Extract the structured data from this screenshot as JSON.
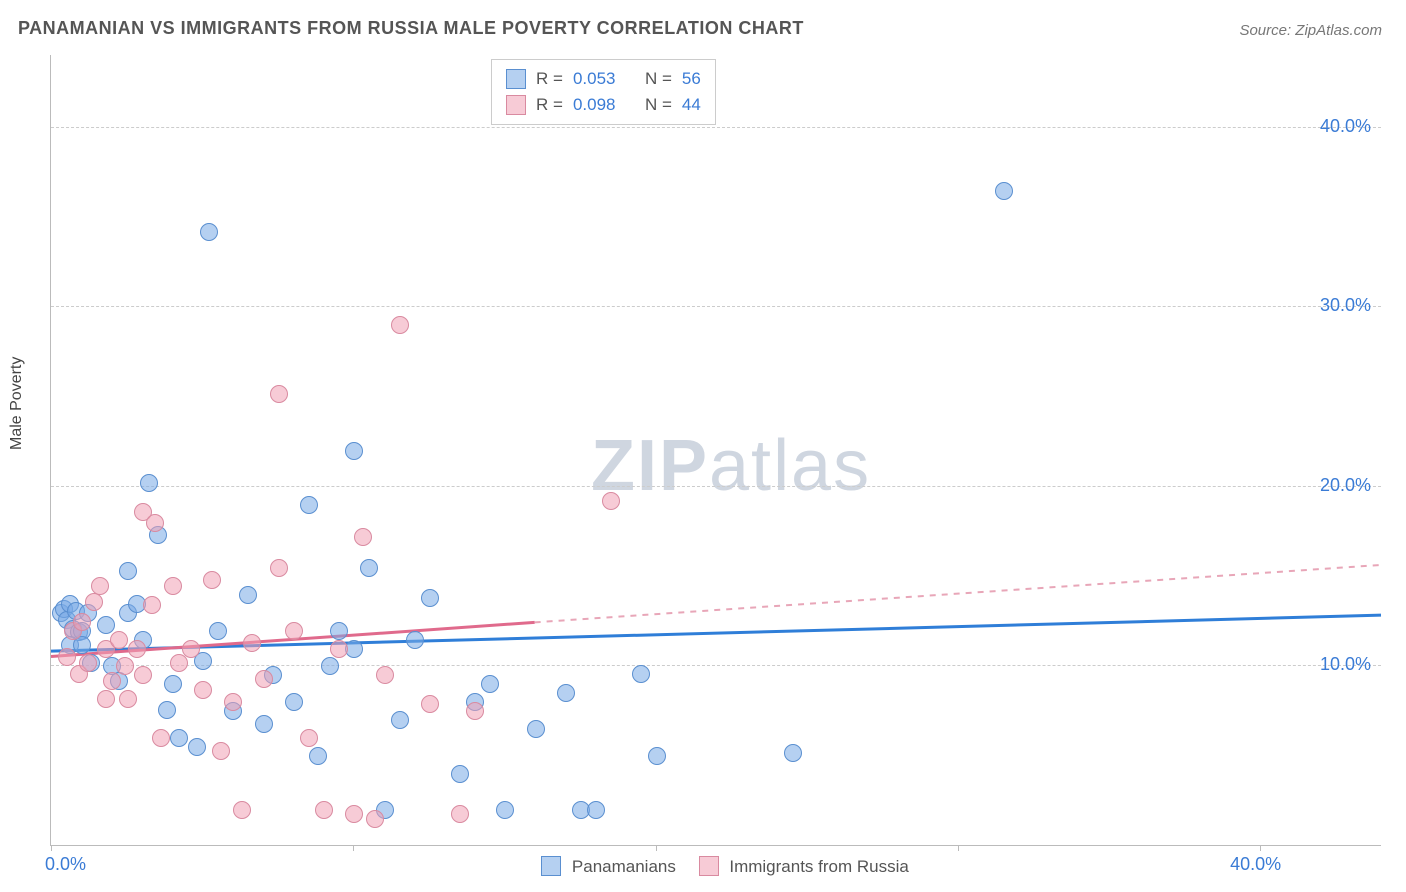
{
  "title": "PANAMANIAN VS IMMIGRANTS FROM RUSSIA MALE POVERTY CORRELATION CHART",
  "source": "Source: ZipAtlas.com",
  "ylabel": "Male Poverty",
  "watermark": {
    "z": "ZIP",
    "rest": "atlas"
  },
  "chart": {
    "type": "scatter",
    "background_color": "#ffffff",
    "grid_color": "#cccccc",
    "axis_color": "#bbbbbb",
    "tick_label_color": "#3a7bd5",
    "tick_fontsize": 18,
    "title_fontsize": 18,
    "marker_radius": 8,
    "xlim": [
      0,
      44
    ],
    "ylim": [
      0,
      44
    ],
    "yticks": [
      10,
      20,
      30,
      40
    ],
    "ytick_labels": [
      "10.0%",
      "20.0%",
      "30.0%",
      "40.0%"
    ],
    "xticks": [
      0,
      10,
      20,
      30,
      40
    ],
    "xtick_labels": [
      "0.0%",
      "",
      "",
      "",
      "40.0%"
    ],
    "series": [
      {
        "name": "Panamanians",
        "marker_fill": "rgba(120,170,230,.55)",
        "marker_stroke": "#5a8fd0",
        "R": "0.053",
        "N": "56",
        "trend": {
          "color": "#2f7ed8",
          "width": 3,
          "dash": "none",
          "x1": 0,
          "y1": 10.8,
          "x2": 44,
          "y2": 12.8
        },
        "points": [
          [
            0.3,
            13.0
          ],
          [
            0.4,
            13.2
          ],
          [
            0.5,
            12.6
          ],
          [
            0.6,
            13.5
          ],
          [
            0.7,
            12.1
          ],
          [
            0.8,
            13.1
          ],
          [
            0.9,
            11.9
          ],
          [
            1.0,
            12.0
          ],
          [
            1.2,
            13.0
          ],
          [
            0.6,
            11.2
          ],
          [
            1.0,
            11.2
          ],
          [
            1.3,
            10.2
          ],
          [
            1.8,
            12.3
          ],
          [
            2.5,
            13.0
          ],
          [
            2.0,
            10.0
          ],
          [
            2.2,
            9.2
          ],
          [
            2.5,
            15.3
          ],
          [
            2.8,
            13.5
          ],
          [
            3.0,
            11.5
          ],
          [
            3.2,
            20.2
          ],
          [
            3.5,
            17.3
          ],
          [
            3.8,
            7.6
          ],
          [
            4.0,
            9.0
          ],
          [
            4.2,
            6.0
          ],
          [
            4.8,
            5.5
          ],
          [
            5.0,
            10.3
          ],
          [
            5.5,
            12.0
          ],
          [
            6.0,
            7.5
          ],
          [
            6.5,
            14.0
          ],
          [
            7.0,
            6.8
          ],
          [
            7.3,
            9.5
          ],
          [
            8.0,
            8.0
          ],
          [
            8.5,
            19.0
          ],
          [
            8.8,
            5.0
          ],
          [
            9.2,
            10.0
          ],
          [
            9.5,
            12.0
          ],
          [
            10.0,
            22.0
          ],
          [
            10.5,
            15.5
          ],
          [
            11.0,
            2.0
          ],
          [
            11.5,
            7.0
          ],
          [
            12.0,
            11.5
          ],
          [
            12.5,
            13.8
          ],
          [
            13.5,
            4.0
          ],
          [
            14.0,
            8.0
          ],
          [
            14.5,
            9.0
          ],
          [
            15.0,
            2.0
          ],
          [
            16.0,
            6.5
          ],
          [
            17.0,
            8.5
          ],
          [
            17.5,
            2.0
          ],
          [
            18.0,
            2.0
          ],
          [
            19.5,
            9.6
          ],
          [
            20.0,
            5.0
          ],
          [
            24.5,
            5.2
          ],
          [
            5.2,
            34.2
          ],
          [
            31.5,
            36.5
          ],
          [
            10.0,
            11.0
          ]
        ]
      },
      {
        "name": "Immigrants from Russia",
        "marker_fill": "rgba(240,160,180,.55)",
        "marker_stroke": "#d98aa0",
        "R": "0.098",
        "N": "44",
        "trend_solid": {
          "color": "#e06a8c",
          "width": 3,
          "x1": 0,
          "y1": 10.5,
          "x2": 16,
          "y2": 12.4
        },
        "trend_dash": {
          "color": "#e8a6b8",
          "width": 2,
          "dash": "6,6",
          "x1": 16,
          "y1": 12.4,
          "x2": 44,
          "y2": 15.6
        },
        "points": [
          [
            0.5,
            10.5
          ],
          [
            0.7,
            12.0
          ],
          [
            0.9,
            9.6
          ],
          [
            1.0,
            12.5
          ],
          [
            1.2,
            10.2
          ],
          [
            1.4,
            13.6
          ],
          [
            1.6,
            14.5
          ],
          [
            1.8,
            11.0
          ],
          [
            1.8,
            8.2
          ],
          [
            2.0,
            9.2
          ],
          [
            2.2,
            11.5
          ],
          [
            2.4,
            10.0
          ],
          [
            2.5,
            8.2
          ],
          [
            2.8,
            11.0
          ],
          [
            3.0,
            18.6
          ],
          [
            3.0,
            9.5
          ],
          [
            3.3,
            13.4
          ],
          [
            3.4,
            18.0
          ],
          [
            3.6,
            6.0
          ],
          [
            4.0,
            14.5
          ],
          [
            4.2,
            10.2
          ],
          [
            4.6,
            11.0
          ],
          [
            5.0,
            8.7
          ],
          [
            5.3,
            14.8
          ],
          [
            5.6,
            5.3
          ],
          [
            6.0,
            8.0
          ],
          [
            6.3,
            2.0
          ],
          [
            6.6,
            11.3
          ],
          [
            7.0,
            9.3
          ],
          [
            7.5,
            15.5
          ],
          [
            7.5,
            25.2
          ],
          [
            8.0,
            12.0
          ],
          [
            8.5,
            6.0
          ],
          [
            9.0,
            2.0
          ],
          [
            9.5,
            11.0
          ],
          [
            10.0,
            1.8
          ],
          [
            10.3,
            17.2
          ],
          [
            10.7,
            1.5
          ],
          [
            11.0,
            9.5
          ],
          [
            11.5,
            29.0
          ],
          [
            12.5,
            7.9
          ],
          [
            13.5,
            1.8
          ],
          [
            14.0,
            7.5
          ],
          [
            18.5,
            19.2
          ]
        ]
      }
    ]
  },
  "legend_top": {
    "r_label": "R =",
    "n_label": "N ="
  },
  "legend_bottom": {
    "a": "Panamanians",
    "b": "Immigrants from Russia"
  }
}
